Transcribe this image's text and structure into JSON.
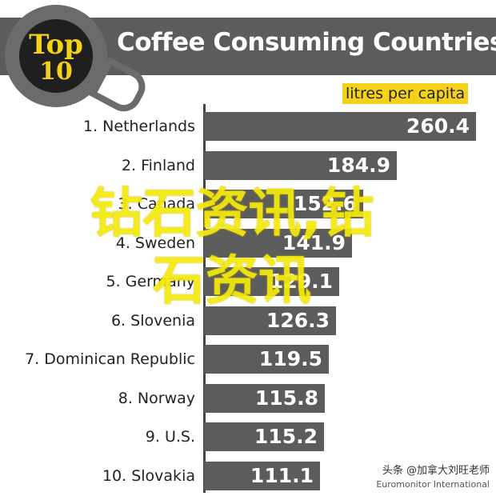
{
  "header": {
    "title": "Coffee Consuming Countries",
    "logo_top": "Top",
    "logo_ten": "10"
  },
  "colors": {
    "bar": "#5c5c5c",
    "accent": "#f5d21a",
    "header_band": "#5c5c5c"
  },
  "watermark": {
    "line1": "钻石资讯,钻",
    "line2": "石资讯"
  },
  "footer": {
    "credit": "头条 @加拿大刘旺老师",
    "source": "Euromonitor International"
  },
  "chart_data": {
    "type": "bar",
    "orientation": "horizontal",
    "title": "Coffee Consuming Countries",
    "unit_label": "litres per capita",
    "categories": [
      "1. Netherlands",
      "2. Finland",
      "3. Canada",
      "4. Sweden",
      "5. Germany",
      "6. Slovenia",
      "7. Dominican Republic",
      "8. Norway",
      "9. U.S.",
      "10. Slovakia"
    ],
    "values": [
      260.4,
      184.9,
      152.6,
      141.9,
      129.1,
      126.3,
      119.5,
      115.8,
      115.2,
      111.1
    ],
    "value_labels": [
      "260.4",
      "184.9",
      "152.6",
      "141.9",
      "129.1",
      "126.3",
      "119.5",
      "115.8",
      "115.2",
      "111.1"
    ],
    "xlim": [
      0,
      260.4
    ],
    "grid": false,
    "legend": "none"
  }
}
